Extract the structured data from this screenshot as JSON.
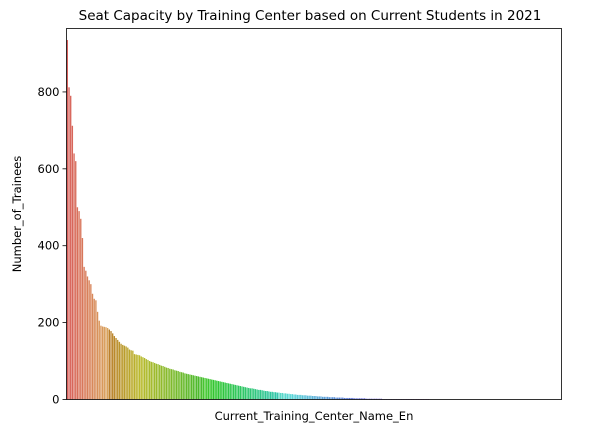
{
  "chart_data": {
    "type": "bar",
    "title": "Seat Capacity by Training Center based on Current Students in 2021",
    "xlabel": "Current_Training_Center_Name_En",
    "ylabel": "Number_of_Trainees",
    "ylim": [
      0,
      965
    ],
    "yticks": [
      0,
      200,
      400,
      600,
      800
    ],
    "x_tick_labels_visible": false,
    "grid": false,
    "legend": "none",
    "bar_count": 250,
    "palette": "seaborn husl (per-category colors, red → orange → olive → green → teal → blue → purple → pink)",
    "values": [
      935,
      812,
      790,
      712,
      640,
      620,
      500,
      490,
      470,
      420,
      345,
      335,
      320,
      310,
      300,
      275,
      262,
      258,
      228,
      205,
      192,
      190,
      189,
      188,
      186,
      182,
      178,
      172,
      165,
      160,
      155,
      150,
      145,
      142,
      140,
      138,
      135,
      130,
      128,
      127,
      118,
      117,
      116,
      115,
      112,
      110,
      108,
      105,
      103,
      100,
      98,
      97,
      95,
      93,
      92,
      90,
      88,
      87,
      85,
      83,
      82,
      80,
      79,
      78,
      76,
      75,
      74,
      72,
      71,
      70,
      68,
      67,
      66,
      65,
      64,
      63,
      62,
      61,
      60,
      59,
      58,
      57,
      56,
      55,
      54,
      53,
      52,
      51,
      50,
      49,
      48,
      47,
      46,
      45,
      44,
      43,
      42,
      41,
      40,
      39,
      38,
      37,
      36,
      35,
      34,
      33,
      32,
      31,
      30,
      29,
      29,
      28,
      27,
      26,
      25,
      25,
      24,
      23,
      22,
      22,
      21,
      20,
      20,
      19,
      19,
      18,
      18,
      17,
      17,
      16,
      16,
      15,
      15,
      14,
      14,
      13,
      13,
      12,
      12,
      12,
      11,
      11,
      11,
      10,
      10,
      10,
      9,
      9,
      9,
      8,
      8,
      8,
      7,
      7,
      7,
      7,
      6,
      6,
      6,
      6,
      5,
      5,
      5,
      5,
      5,
      4,
      4,
      4,
      4,
      4,
      4,
      3,
      3,
      3,
      3,
      3,
      3,
      3,
      2,
      2,
      2,
      2,
      2,
      2,
      2,
      2,
      2,
      2,
      1,
      1,
      1,
      1,
      1,
      1,
      1,
      1,
      1,
      1,
      1,
      1,
      1,
      1,
      1,
      1,
      1,
      1,
      1,
      1,
      1,
      1,
      1,
      1,
      1,
      1,
      1,
      1,
      0,
      0,
      0,
      0,
      0,
      0,
      0,
      0,
      0,
      0,
      0,
      0,
      0,
      0,
      0,
      0,
      0,
      0,
      0,
      0,
      0,
      0,
      0,
      0,
      0,
      0,
      0,
      0,
      0,
      0,
      0,
      0,
      0,
      0,
      0,
      0,
      0,
      0,
      0,
      0,
      0,
      0,
      0
    ]
  }
}
